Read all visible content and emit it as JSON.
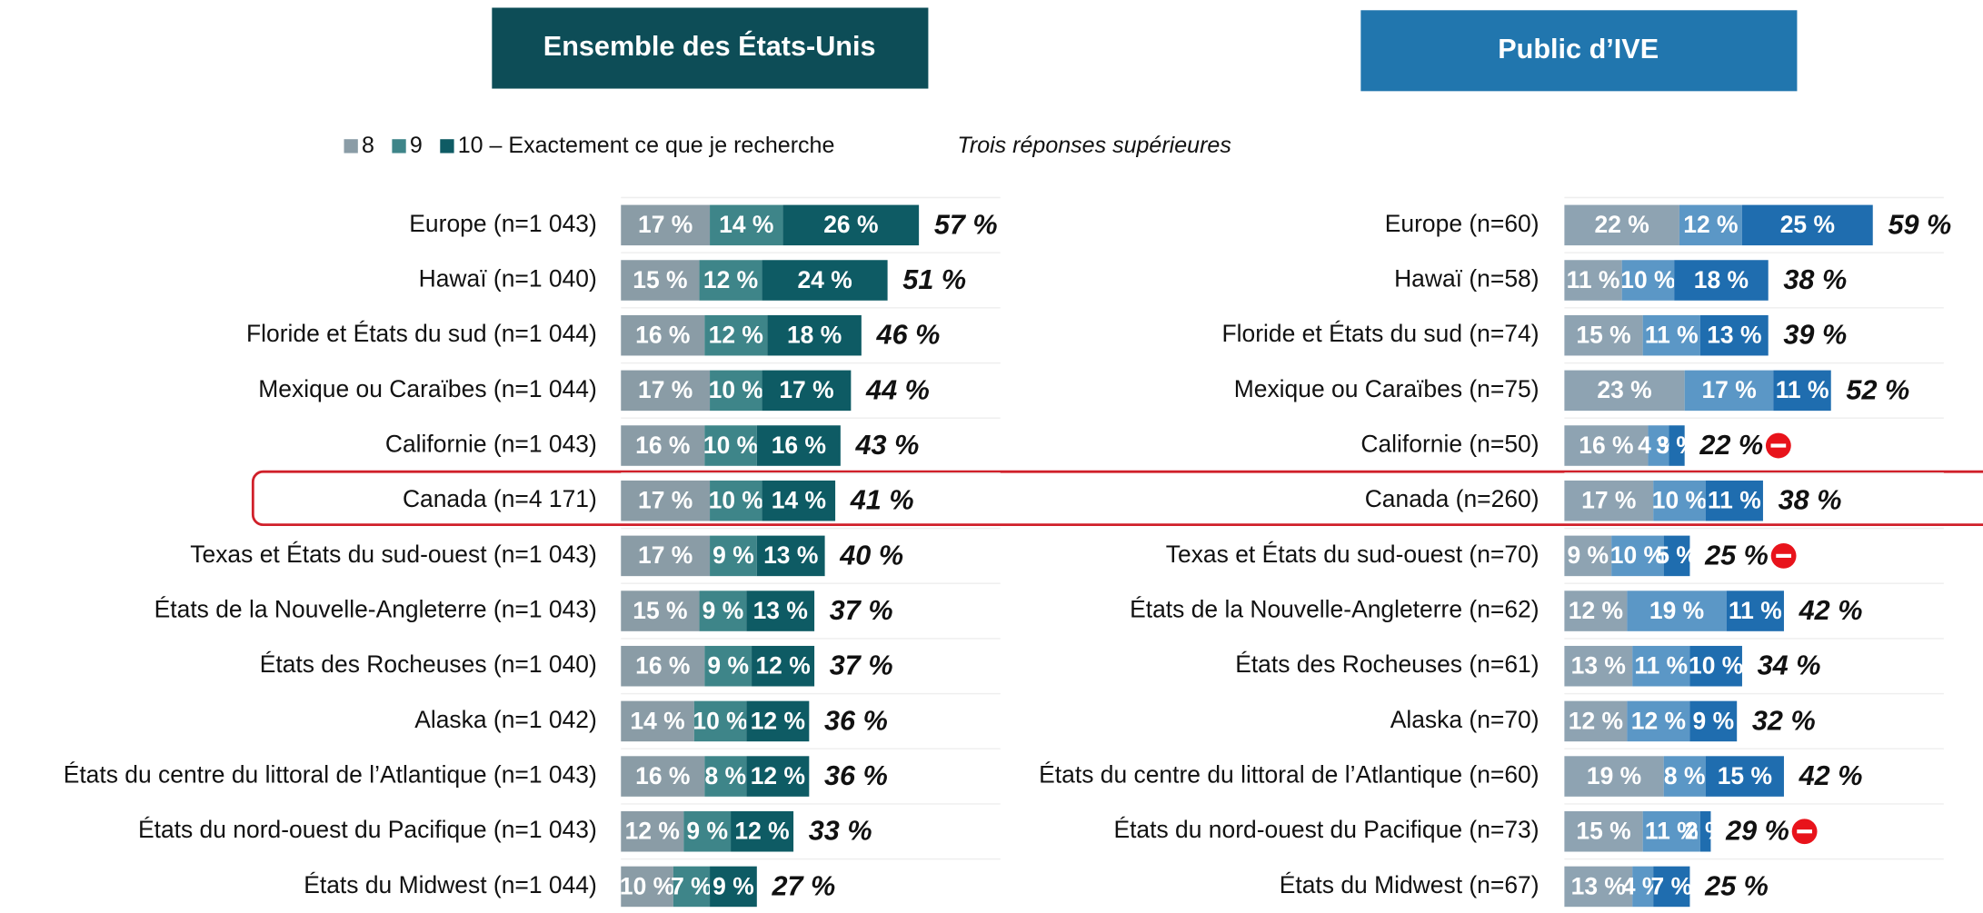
{
  "chart_data": [
    {
      "type": "bar",
      "orientation": "horizontal",
      "title": "Ensemble des États-Unis",
      "header_color": "#0d4d57",
      "categories": [
        "Europe (n=1 043)",
        "Hawaï (n=1 040)",
        "Floride et États du sud (n=1 044)",
        "Mexique ou Caraïbes (n=1 044)",
        "Californie (n=1 043)",
        "Canada (n=4 171)",
        "Texas et États du sud-ouest (n=1 043)",
        "États de la Nouvelle-Angleterre (n=1 043)",
        "États des Rocheuses (n=1 040)",
        "Alaska (n=1 042)",
        "États du centre du littoral de l’Atlantique (n=1 043)",
        "États du nord-ouest du Pacifique (n=1 043)",
        "États du Midwest (n=1 044)"
      ],
      "series": [
        {
          "name": "8",
          "color": "#8a9ca6",
          "values": [
            17,
            15,
            16,
            17,
            16,
            17,
            17,
            15,
            16,
            14,
            16,
            12,
            10
          ],
          "value_labels": [
            "17 %",
            "15 %",
            "16 %",
            "17 %",
            "16 %",
            "17 %",
            "17 %",
            "15 %",
            "16 %",
            "14 %",
            "16 %",
            "12 %",
            "10 %"
          ]
        },
        {
          "name": "9",
          "color": "#3e8589",
          "values": [
            14,
            12,
            12,
            10,
            10,
            10,
            9,
            9,
            9,
            10,
            8,
            9,
            7
          ],
          "value_labels": [
            "14 %",
            "12 %",
            "12 %",
            "10 %",
            "10 %",
            "10 %",
            "9 %",
            "9 %",
            "9 %",
            "10 %",
            "8 %",
            "9 %",
            "7 %"
          ]
        },
        {
          "name": "10 – Exactement ce que je recherche",
          "color": "#0e5b64",
          "values": [
            26,
            24,
            18,
            17,
            16,
            14,
            13,
            13,
            12,
            12,
            12,
            12,
            9
          ],
          "value_labels": [
            "26 %",
            "24 %",
            "18 %",
            "17 %",
            "16 %",
            "14 %",
            "13 %",
            "13 %",
            "12 %",
            "12 %",
            "12 %",
            "12 %",
            "9 %"
          ]
        }
      ],
      "totals_name": "Trois réponses supérieures",
      "totals": [
        57,
        51,
        46,
        44,
        43,
        41,
        40,
        37,
        37,
        36,
        36,
        33,
        27
      ],
      "total_labels": [
        "57 %",
        "51 %",
        "46 %",
        "44 %",
        "43 %",
        "41 %",
        "40 %",
        "37 %",
        "37 %",
        "36 %",
        "36 %",
        "33 %",
        "27 %"
      ],
      "xlim": [
        0,
        60
      ]
    },
    {
      "type": "bar",
      "orientation": "horizontal",
      "title": "Public d’IVE",
      "header_color": "#2176ae",
      "categories": [
        "Europe (n=60)",
        "Hawaï (n=58)",
        "Floride et États du sud (n=74)",
        "Mexique ou Caraïbes (n=75)",
        "Californie (n=50)",
        "Canada (n=260)",
        "Texas et États du sud-ouest (n=70)",
        "États de la Nouvelle-Angleterre (n=62)",
        "États des Rocheuses (n=61)",
        "Alaska (n=70)",
        "États du centre du littoral de l’Atlantique (n=60)",
        "États du nord-ouest du Pacifique (n=73)",
        "États du Midwest (n=67)"
      ],
      "series": [
        {
          "color": "#8ea3b2",
          "values": [
            22,
            11,
            15,
            23,
            16,
            17,
            9,
            12,
            13,
            12,
            19,
            15,
            13
          ],
          "value_labels": [
            "22 %",
            "11 %",
            "15 %",
            "23 %",
            "16 %",
            "17 %",
            "9 %",
            "12 %",
            "13 %",
            "12 %",
            "19 %",
            "15 %",
            "13 %"
          ]
        },
        {
          "color": "#5b97c6",
          "values": [
            12,
            10,
            11,
            17,
            4,
            10,
            10,
            19,
            11,
            12,
            8,
            11,
            4
          ],
          "value_labels": [
            "12 %",
            "10 %",
            "11 %",
            "17 %",
            "4 %",
            "10 %",
            "10 %",
            "19 %",
            "11 %",
            "12 %",
            "8 %",
            "11 %",
            "4 %"
          ]
        },
        {
          "color": "#1f6daf",
          "values": [
            25,
            18,
            13,
            11,
            3,
            11,
            5,
            11,
            10,
            9,
            15,
            2,
            7
          ],
          "value_labels": [
            "25 %",
            "18 %",
            "13 %",
            "11 %",
            "3 %",
            "11 %",
            "5 %",
            "11 %",
            "10 %",
            "9 %",
            "15 %",
            "2 %",
            "7 %"
          ]
        }
      ],
      "totals": [
        59,
        38,
        39,
        52,
        22,
        38,
        25,
        42,
        34,
        32,
        42,
        29,
        25
      ],
      "total_labels": [
        "59 %",
        "38 %",
        "39 %",
        "52 %",
        "22 %",
        "38 %",
        "25 %",
        "42 %",
        "34 %",
        "32 %",
        "42 %",
        "29 %",
        "25 %"
      ],
      "lower_flags": [
        false,
        false,
        false,
        false,
        true,
        false,
        true,
        false,
        false,
        false,
        false,
        true,
        false
      ],
      "xlim": [
        0,
        60
      ]
    }
  ]
}
